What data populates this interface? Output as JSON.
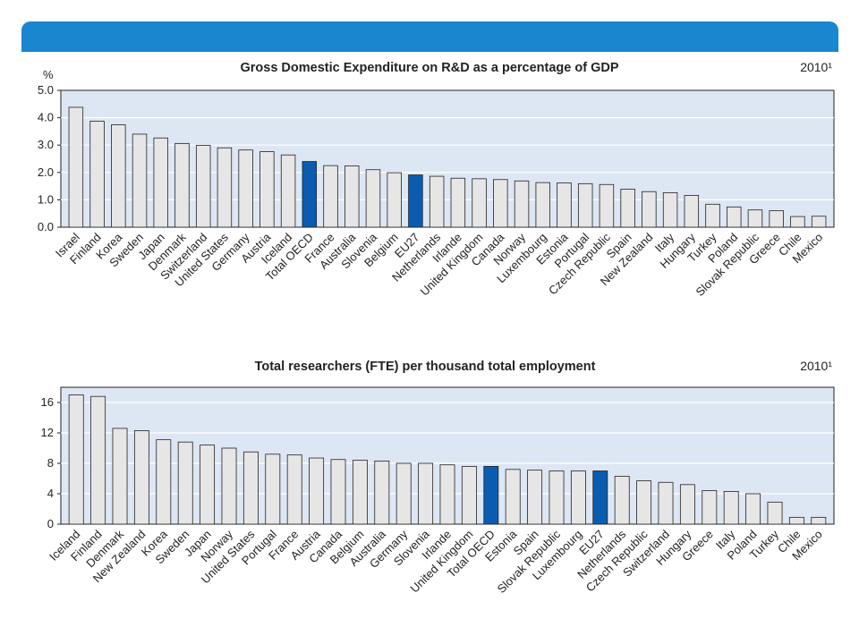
{
  "colors": {
    "banner": "#1a86d0",
    "plot_bg": "#dde7f3",
    "bar": "#e6e6e6",
    "bar_highlight": "#0a5cb0",
    "bar_stroke": "#222222"
  },
  "chart_data": [
    {
      "type": "bar",
      "title": "Gross Domestic Expenditure on R&D as a percentage of GDP",
      "year_note": "2010¹",
      "ylabel": "%",
      "ylim": [
        0,
        5
      ],
      "yticks": [
        "0.0",
        "1.0",
        "2.0",
        "3.0",
        "4.0",
        "5.0"
      ],
      "grid": true,
      "categories": [
        "Israel",
        "Finland",
        "Korea",
        "Sweden",
        "Japan",
        "Denmark",
        "Switzerland",
        "United States",
        "Germany",
        "Austria",
        "Iceland",
        "Total OECD",
        "France",
        "Australia",
        "Slovenia",
        "Belgium",
        "EU27",
        "Netherlands",
        "Irlande",
        "United Kingdom",
        "Canada",
        "Norway",
        "Luxembourg",
        "Estonia",
        "Portugal",
        "Czech Republic",
        "Spain",
        "New Zealand",
        "Italy",
        "Hungary",
        "Turkey",
        "Poland",
        "Slovak Republic",
        "Greece",
        "Chile",
        "Mexico"
      ],
      "values": [
        4.38,
        3.87,
        3.74,
        3.4,
        3.26,
        3.06,
        2.99,
        2.9,
        2.82,
        2.76,
        2.64,
        2.4,
        2.25,
        2.24,
        2.1,
        1.99,
        1.91,
        1.86,
        1.79,
        1.77,
        1.74,
        1.69,
        1.63,
        1.62,
        1.59,
        1.56,
        1.39,
        1.3,
        1.26,
        1.16,
        0.84,
        0.74,
        0.63,
        0.6,
        0.39,
        0.4
      ],
      "highlight": [
        "Total OECD",
        "EU27"
      ]
    },
    {
      "type": "bar",
      "title": "Total researchers (FTE) per thousand total employment",
      "year_note": "2010¹",
      "ylabel": "",
      "ylim": [
        0,
        18
      ],
      "yticks": [
        "0",
        "4",
        "8",
        "12",
        "16"
      ],
      "grid": true,
      "categories": [
        "Iceland",
        "Finland",
        "Denmark",
        "New Zealand",
        "Korea",
        "Sweden",
        "Japan",
        "Norway",
        "United States",
        "Portugal",
        "France",
        "Austria",
        "Canada",
        "Belgium",
        "Australia",
        "Germany",
        "Slovenia",
        "Irlande",
        "United Kingdom",
        "Total OECD",
        "Estonia",
        "Spain",
        "Slovak Republic",
        "Luxembourg",
        "EU27",
        "Netherlands",
        "Czech Republic",
        "Switzerland",
        "Hungary",
        "Greece",
        "Italy",
        "Poland",
        "Turkey",
        "Chile",
        "Mexico"
      ],
      "values": [
        17.0,
        16.8,
        12.6,
        12.3,
        11.1,
        10.8,
        10.4,
        10.0,
        9.5,
        9.2,
        9.1,
        8.7,
        8.5,
        8.4,
        8.3,
        8.0,
        8.0,
        7.8,
        7.6,
        7.6,
        7.2,
        7.1,
        7.0,
        7.0,
        7.0,
        6.3,
        5.7,
        5.5,
        5.2,
        4.4,
        4.3,
        4.0,
        2.9,
        0.9,
        0.9
      ],
      "highlight": [
        "Total OECD",
        "EU27"
      ]
    }
  ]
}
